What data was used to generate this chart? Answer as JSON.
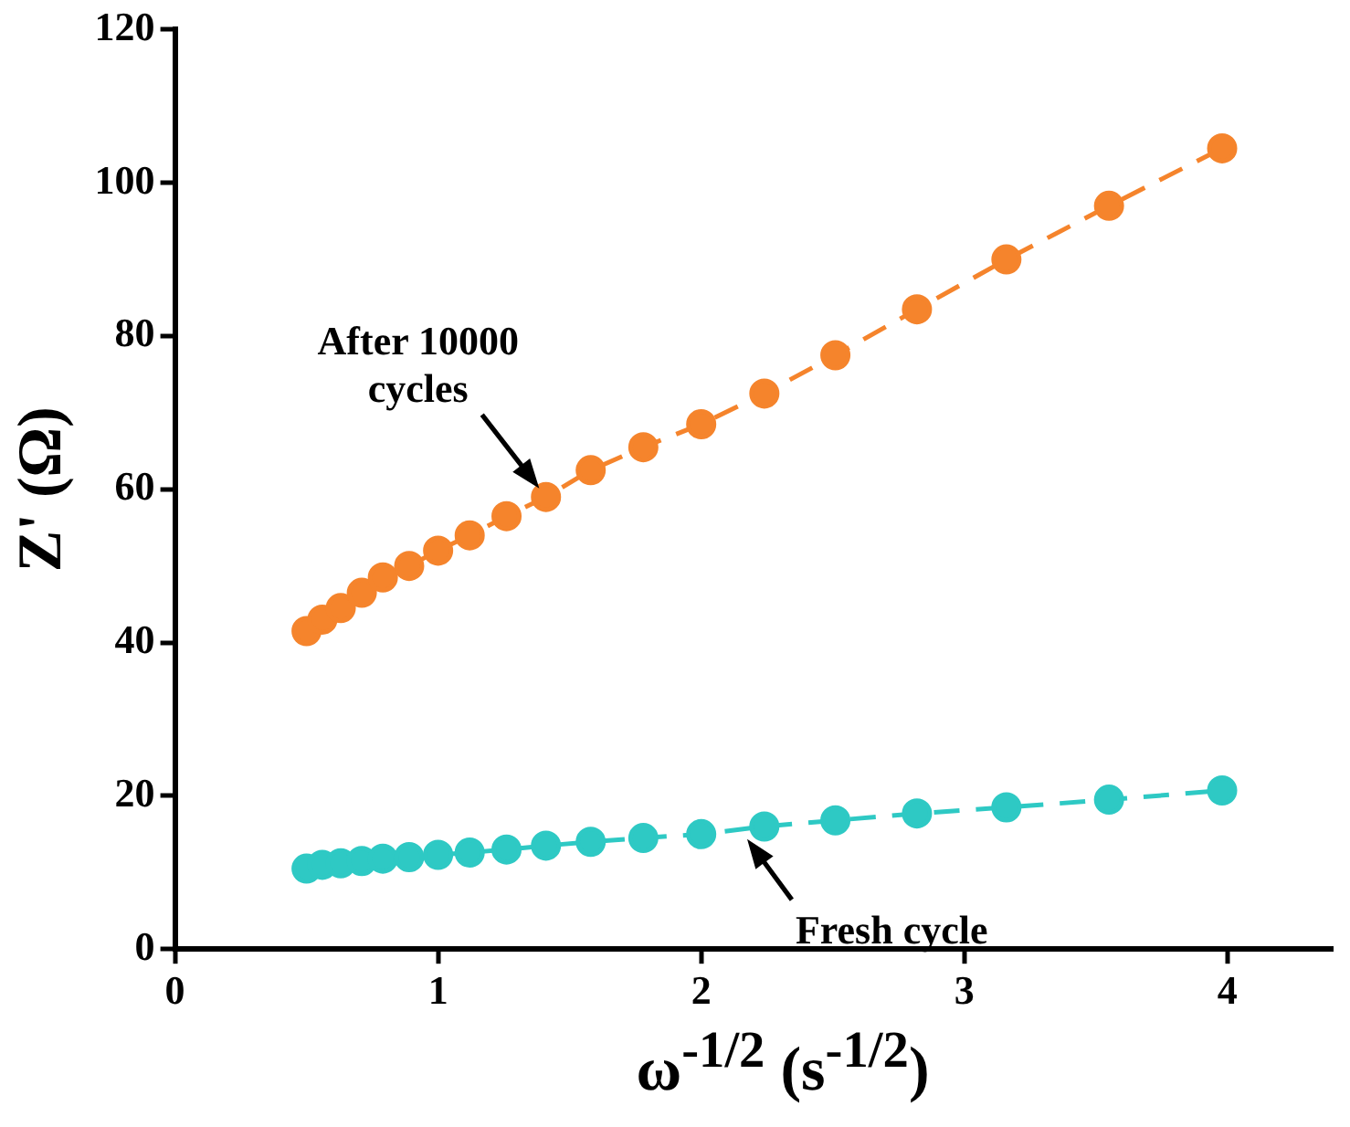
{
  "chart_data": {
    "type": "line",
    "xlabel": "ω$^{-1/2}$ (s$^{-1/2}$)",
    "ylabel": "Z' (Ω)",
    "x": [
      0.5,
      0.56,
      0.63,
      0.71,
      0.79,
      0.89,
      1.0,
      1.12,
      1.26,
      1.41,
      1.58,
      1.78,
      2.0,
      2.24,
      2.51,
      2.82,
      3.16,
      3.55,
      3.98
    ],
    "series": [
      {
        "color": "#f5842c",
        "values": [
          41.5,
          43,
          44.5,
          46.5,
          48.5,
          50,
          52,
          54,
          56.5,
          59,
          62.5,
          65.5,
          68.5,
          72.5,
          77.5,
          83.5,
          90,
          97,
          104.5
        ]
      },
      {
        "color": "#2ec9c4",
        "values": [
          10.5,
          11,
          11.2,
          11.5,
          11.8,
          12,
          12.3,
          12.6,
          13,
          13.5,
          14,
          14.5,
          15,
          16,
          16.8,
          17.7,
          18.5,
          19.5,
          20.7
        ]
      }
    ],
    "xlim": [
      0,
      4.4
    ],
    "xticks": [
      0,
      1,
      2,
      3,
      4
    ],
    "ylim": [
      0,
      120
    ],
    "yticks": [
      0,
      20,
      40,
      60,
      80,
      100,
      120
    ],
    "marker": "circle",
    "line_style": "dashed",
    "grid": false,
    "legend": false,
    "annotations": [
      {
        "text": "After 10000 cycles",
        "x": 1.41,
        "y": 59
      },
      {
        "text": "Fresh cycle",
        "x": 2.15,
        "y": 15.5
      }
    ]
  }
}
